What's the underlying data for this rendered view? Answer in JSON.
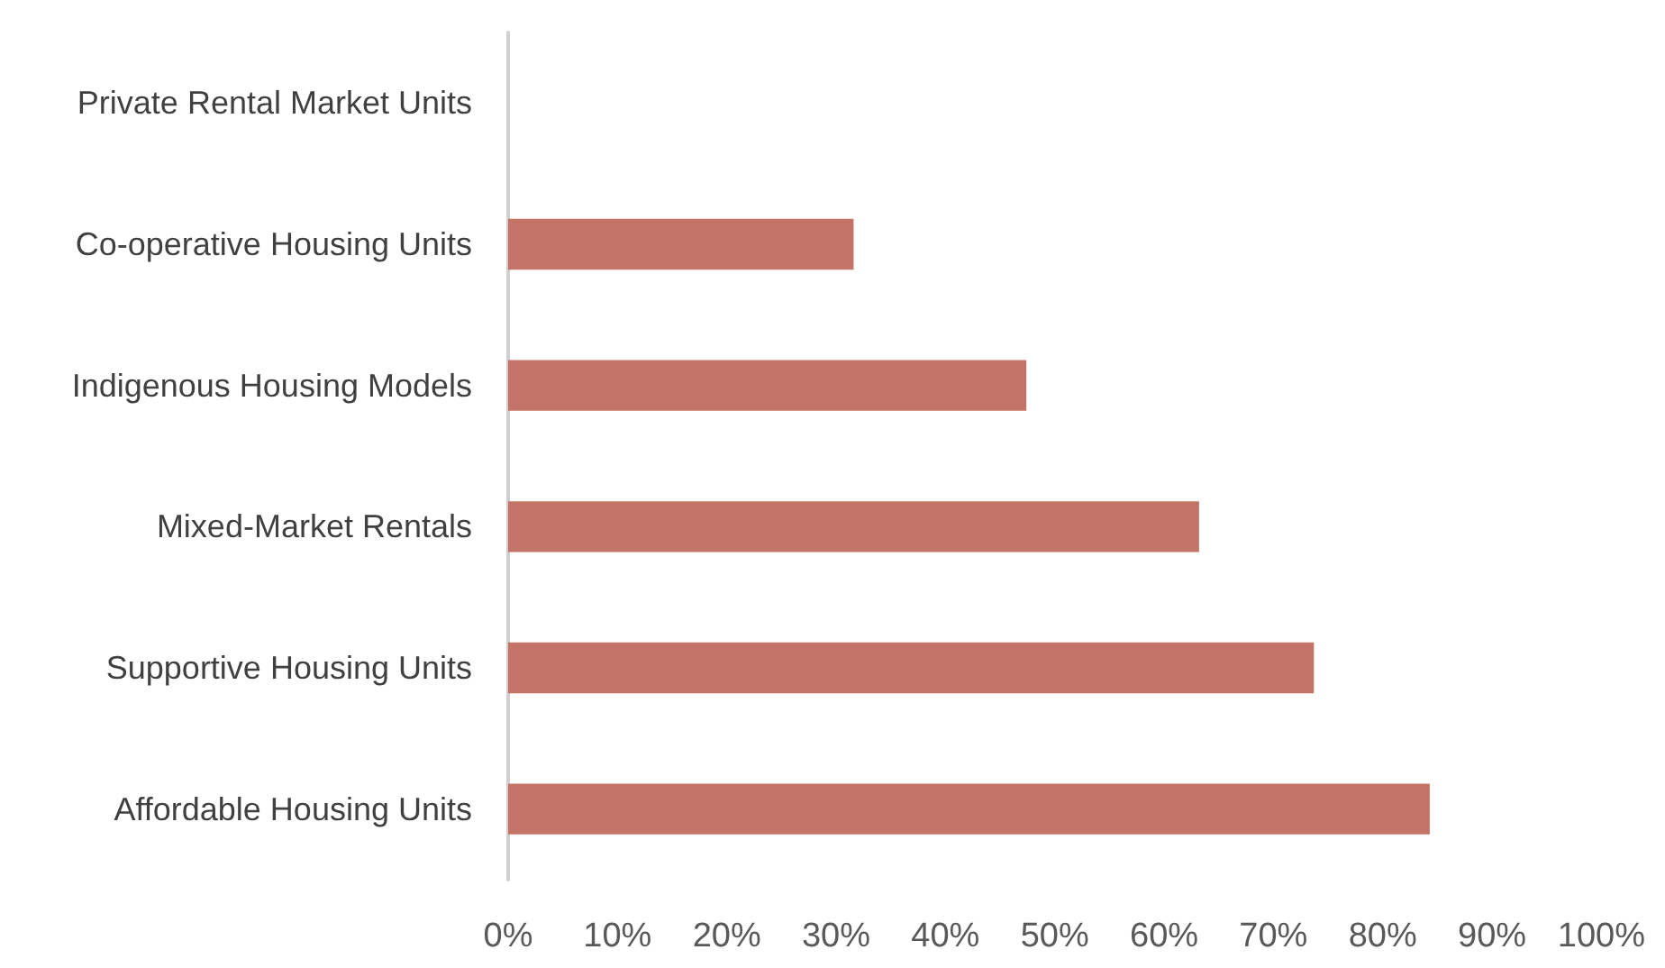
{
  "chart_data": {
    "type": "bar",
    "orientation": "horizontal",
    "categories": [
      "Private Rental Market Units",
      "Co-operative Housing Units",
      "Indigenous Housing Models",
      "Mixed-Market Rentals",
      "Supportive Housing Units",
      "Affordable Housing Units"
    ],
    "values": [
      0,
      31.6,
      47.4,
      63.2,
      73.7,
      84.3
    ],
    "color": "#c47466",
    "xlim": [
      0,
      100
    ],
    "xticks": [
      {
        "value": 0,
        "label": "0%"
      },
      {
        "value": 10,
        "label": "10%"
      },
      {
        "value": 20,
        "label": "20%"
      },
      {
        "value": 30,
        "label": "30%"
      },
      {
        "value": 40,
        "label": "40%"
      },
      {
        "value": 50,
        "label": "50%"
      },
      {
        "value": 60,
        "label": "60%"
      },
      {
        "value": 70,
        "label": "70%"
      },
      {
        "value": 80,
        "label": "80%"
      },
      {
        "value": 90,
        "label": "90%"
      },
      {
        "value": 100,
        "label": "100%"
      }
    ],
    "grid": false
  }
}
